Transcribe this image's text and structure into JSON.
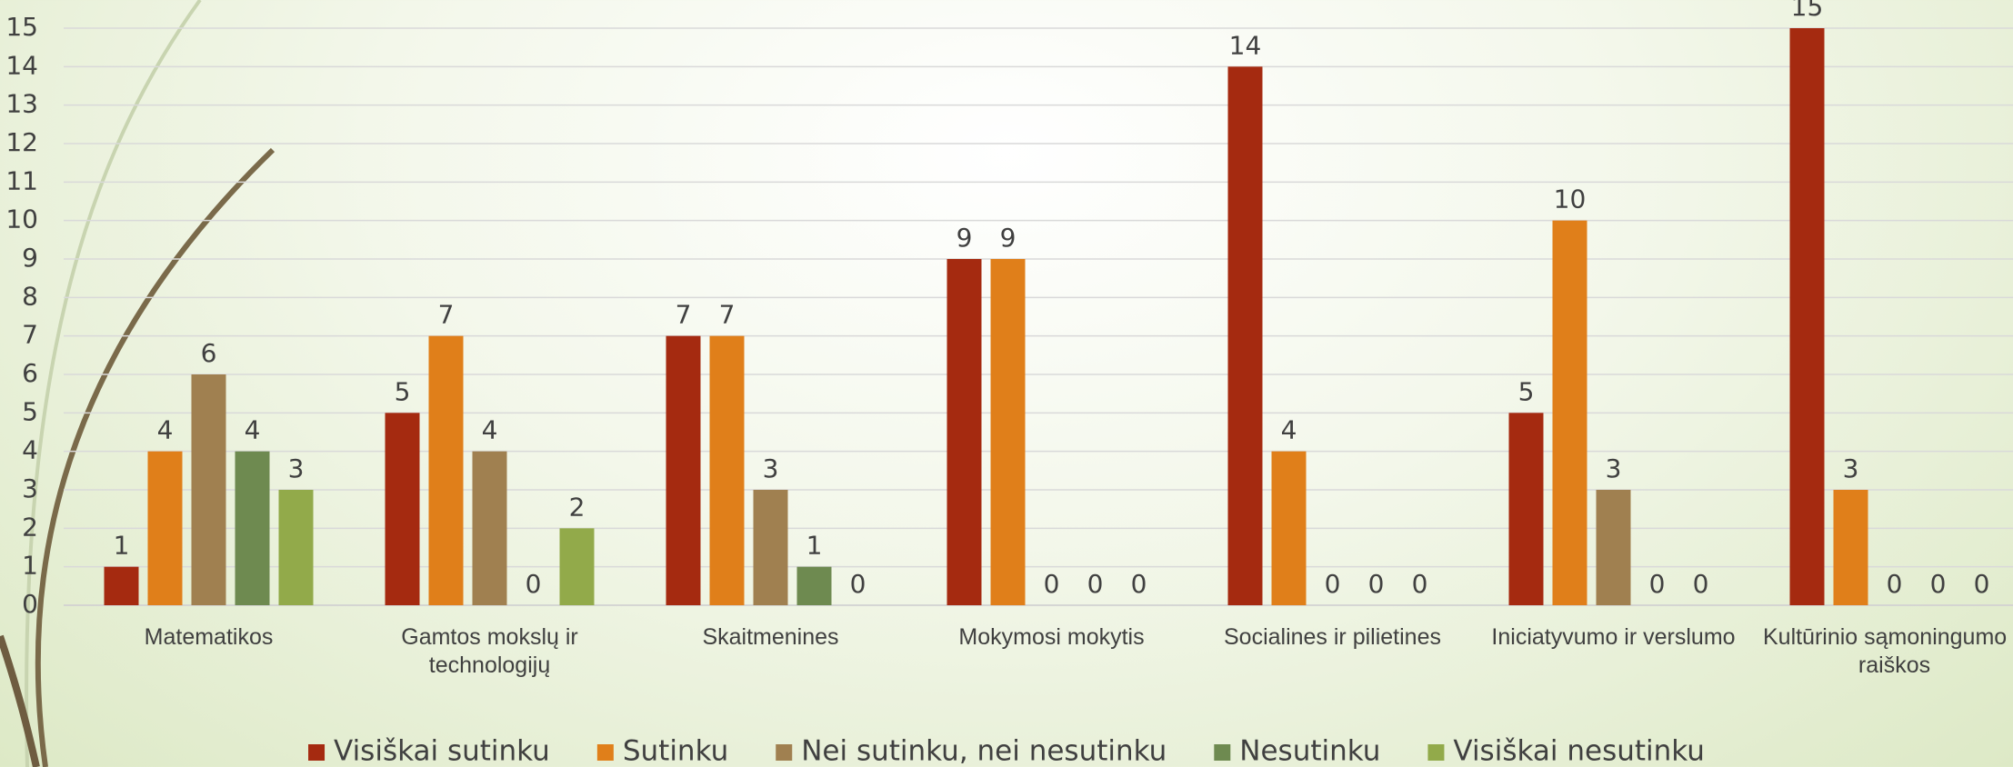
{
  "chart_data": {
    "type": "bar",
    "categories": [
      "Matematikos",
      "Gamtos mokslų ir technologijų",
      "Skaitmenines",
      "Mokymosi mokytis",
      "Socialines ir pilietines",
      "Iniciatyvumo ir verslumo",
      "Kultūrinio sąmoningumo ir raiškos"
    ],
    "series": [
      {
        "name": "Visiškai sutinku",
        "color": "#a52a10",
        "values": [
          1,
          5,
          7,
          9,
          14,
          5,
          15
        ]
      },
      {
        "name": "Sutinku",
        "color": "#e07f1a",
        "values": [
          4,
          7,
          7,
          9,
          4,
          10,
          3
        ]
      },
      {
        "name": "Nei sutinku, nei nesutinku",
        "color": "#a08050",
        "values": [
          6,
          4,
          3,
          0,
          0,
          3,
          0
        ]
      },
      {
        "name": "Nesutinku",
        "color": "#6e8a50",
        "values": [
          4,
          0,
          1,
          0,
          0,
          0,
          0
        ]
      },
      {
        "name": "Visiškai nesutinku",
        "color": "#92aa4a",
        "values": [
          3,
          2,
          0,
          0,
          0,
          0,
          0
        ]
      }
    ],
    "ylim": [
      0,
      15
    ],
    "yticks": [
      0,
      1,
      2,
      3,
      4,
      5,
      6,
      7,
      8,
      9,
      10,
      11,
      12,
      13,
      14,
      15
    ],
    "grid": true,
    "legend": "bottom"
  }
}
